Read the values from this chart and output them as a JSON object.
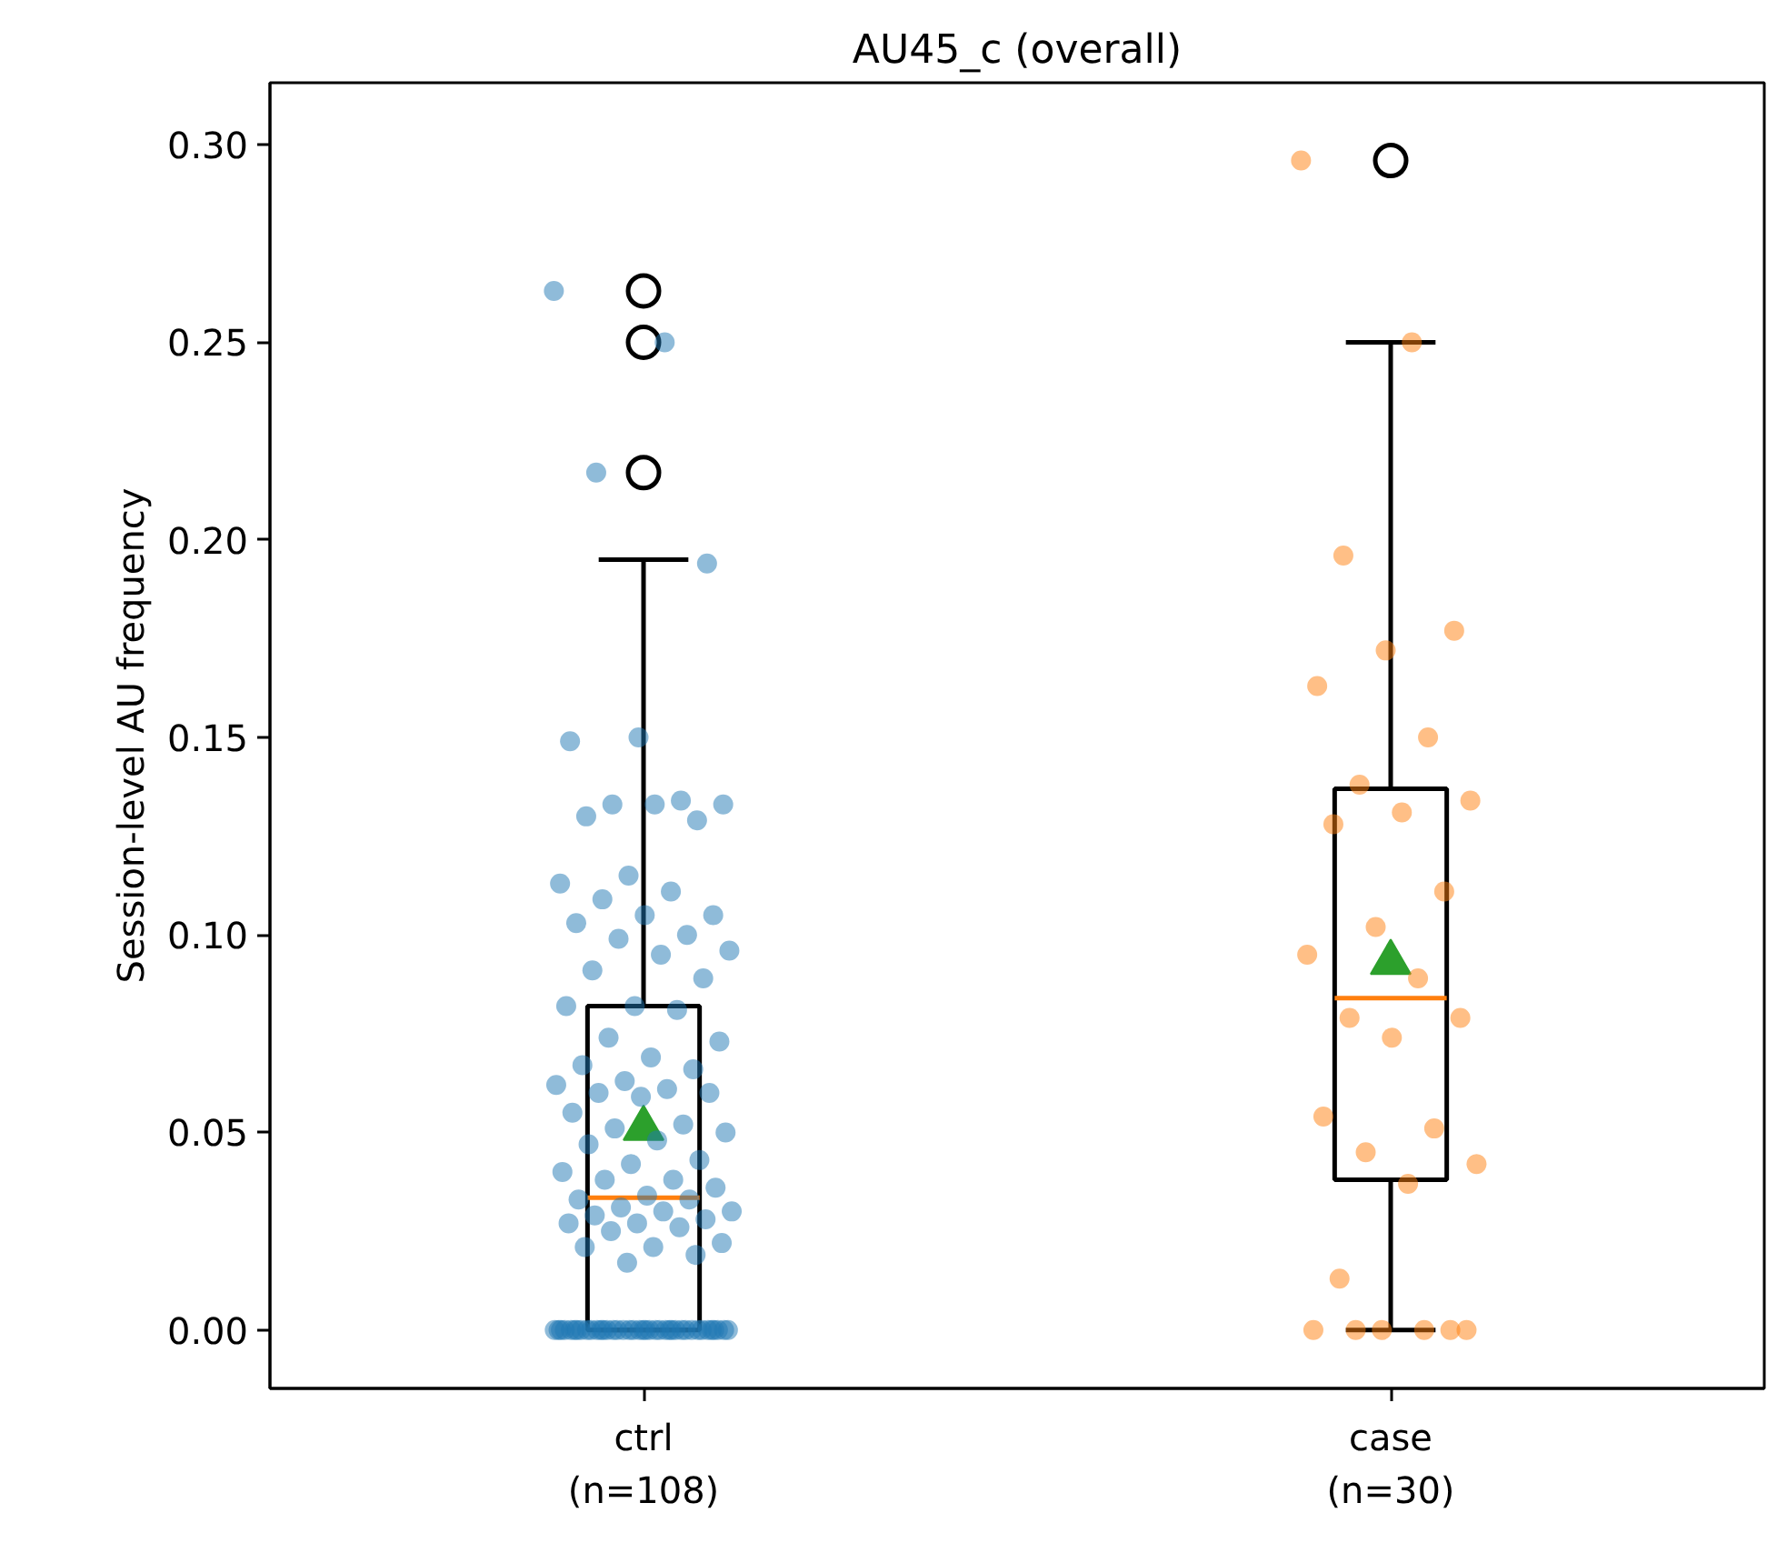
{
  "chart_data": {
    "type": "box",
    "title": "AU45_c (overall)",
    "ylabel": "Session-level AU frequency",
    "categories": [
      "ctrl\n(n=108)",
      "case\n(n=30)"
    ],
    "boxes": [
      {
        "low": 0,
        "q1": 0,
        "median": 0.0335,
        "q3": 0.082,
        "high": 0.195,
        "mean": 0.051,
        "outliers": [
          0.263,
          0.25,
          0.217
        ]
      },
      {
        "low": 0,
        "q1": 0.038,
        "median": 0.084,
        "q3": 0.137,
        "high": 0.25,
        "mean": 0.093,
        "outliers": [
          0.296
        ]
      }
    ],
    "series": [
      {
        "type": "scatter",
        "color": "#1f77b4",
        "x": [
          "ctrl\n(n=108)",
          "ctrl\n(n=108)",
          "ctrl\n(n=108)",
          "ctrl\n(n=108)",
          "ctrl\n(n=108)",
          "ctrl\n(n=108)",
          "ctrl\n(n=108)",
          "ctrl\n(n=108)",
          "ctrl\n(n=108)",
          "ctrl\n(n=108)",
          "ctrl\n(n=108)",
          "ctrl\n(n=108)",
          "ctrl\n(n=108)",
          "ctrl\n(n=108)",
          "ctrl\n(n=108)",
          "ctrl\n(n=108)",
          "ctrl\n(n=108)",
          "ctrl\n(n=108)",
          "ctrl\n(n=108)",
          "ctrl\n(n=108)",
          "ctrl\n(n=108)",
          "ctrl\n(n=108)",
          "ctrl\n(n=108)",
          "ctrl\n(n=108)",
          "ctrl\n(n=108)",
          "ctrl\n(n=108)",
          "ctrl\n(n=108)",
          "ctrl\n(n=108)",
          "ctrl\n(n=108)",
          "ctrl\n(n=108)",
          "ctrl\n(n=108)",
          "ctrl\n(n=108)",
          "ctrl\n(n=108)",
          "ctrl\n(n=108)",
          "ctrl\n(n=108)",
          "ctrl\n(n=108)",
          "ctrl\n(n=108)",
          "ctrl\n(n=108)",
          "ctrl\n(n=108)",
          "ctrl\n(n=108)",
          "ctrl\n(n=108)",
          "ctrl\n(n=108)",
          "ctrl\n(n=108)",
          "ctrl\n(n=108)",
          "ctrl\n(n=108)",
          "ctrl\n(n=108)",
          "ctrl\n(n=108)",
          "ctrl\n(n=108)",
          "ctrl\n(n=108)",
          "ctrl\n(n=108)",
          "ctrl\n(n=108)",
          "ctrl\n(n=108)",
          "ctrl\n(n=108)",
          "ctrl\n(n=108)",
          "ctrl\n(n=108)",
          "ctrl\n(n=108)",
          "ctrl\n(n=108)",
          "ctrl\n(n=108)",
          "ctrl\n(n=108)",
          "ctrl\n(n=108)",
          "ctrl\n(n=108)",
          "ctrl\n(n=108)",
          "ctrl\n(n=108)",
          "ctrl\n(n=108)",
          "ctrl\n(n=108)",
          "ctrl\n(n=108)",
          "ctrl\n(n=108)",
          "ctrl\n(n=108)",
          "ctrl\n(n=108)",
          "ctrl\n(n=108)",
          "ctrl\n(n=108)",
          "ctrl\n(n=108)",
          "ctrl\n(n=108)",
          "ctrl\n(n=108)",
          "ctrl\n(n=108)",
          "ctrl\n(n=108)",
          "ctrl\n(n=108)",
          "ctrl\n(n=108)",
          "ctrl\n(n=108)",
          "ctrl\n(n=108)",
          "ctrl\n(n=108)",
          "ctrl\n(n=108)",
          "ctrl\n(n=108)",
          "ctrl\n(n=108)",
          "ctrl\n(n=108)",
          "ctrl\n(n=108)",
          "ctrl\n(n=108)",
          "ctrl\n(n=108)",
          "ctrl\n(n=108)",
          "ctrl\n(n=108)",
          "ctrl\n(n=108)",
          "ctrl\n(n=108)",
          "ctrl\n(n=108)",
          "ctrl\n(n=108)",
          "ctrl\n(n=108)",
          "ctrl\n(n=108)",
          "ctrl\n(n=108)",
          "ctrl\n(n=108)",
          "ctrl\n(n=108)",
          "ctrl\n(n=108)",
          "ctrl\n(n=108)",
          "ctrl\n(n=108)",
          "ctrl\n(n=108)",
          "ctrl\n(n=108)",
          "ctrl\n(n=108)",
          "ctrl\n(n=108)",
          "ctrl\n(n=108)",
          "ctrl\n(n=108)"
        ],
        "values": [
          0.263,
          0.25,
          0.217,
          0.194,
          0.15,
          0.149,
          0.134,
          0.133,
          0.133,
          0.133,
          0.13,
          0.129,
          0.115,
          0.113,
          0.111,
          0.109,
          0.105,
          0.105,
          0.103,
          0.1,
          0.099,
          0.096,
          0.095,
          0.091,
          0.089,
          0.082,
          0.082,
          0.081,
          0.074,
          0.073,
          0.069,
          0.067,
          0.066,
          0.063,
          0.062,
          0.061,
          0.06,
          0.06,
          0.059,
          0.055,
          0.052,
          0.051,
          0.05,
          0.048,
          0.047,
          0.043,
          0.042,
          0.04,
          0.038,
          0.038,
          0.036,
          0.034,
          0.033,
          0.033,
          0.031,
          0.03,
          0.03,
          0.029,
          0.028,
          0.027,
          0.027,
          0.026,
          0.025,
          0.022,
          0.021,
          0.021,
          0.019,
          0.017,
          0,
          0,
          0,
          0,
          0,
          0,
          0,
          0,
          0,
          0,
          0,
          0,
          0,
          0,
          0,
          0,
          0,
          0,
          0,
          0,
          0,
          0,
          0,
          0,
          0,
          0,
          0,
          0,
          0,
          0,
          0,
          0,
          0,
          0,
          0,
          0,
          0,
          0,
          0,
          0
        ]
      },
      {
        "type": "scatter",
        "color": "#ff7f0e",
        "x": [
          "case\n(n=30)",
          "case\n(n=30)",
          "case\n(n=30)",
          "case\n(n=30)",
          "case\n(n=30)",
          "case\n(n=30)",
          "case\n(n=30)",
          "case\n(n=30)",
          "case\n(n=30)",
          "case\n(n=30)",
          "case\n(n=30)",
          "case\n(n=30)",
          "case\n(n=30)",
          "case\n(n=30)",
          "case\n(n=30)",
          "case\n(n=30)",
          "case\n(n=30)",
          "case\n(n=30)",
          "case\n(n=30)",
          "case\n(n=30)",
          "case\n(n=30)",
          "case\n(n=30)",
          "case\n(n=30)",
          "case\n(n=30)",
          "case\n(n=30)",
          "case\n(n=30)",
          "case\n(n=30)",
          "case\n(n=30)",
          "case\n(n=30)",
          "case\n(n=30)"
        ],
        "values": [
          0.296,
          0.25,
          0.196,
          0.177,
          0.172,
          0.163,
          0.15,
          0.138,
          0.134,
          0.131,
          0.128,
          0.111,
          0.102,
          0.095,
          0.089,
          0.079,
          0.079,
          0.074,
          0.054,
          0.051,
          0.045,
          0.042,
          0.037,
          0.013,
          0,
          0,
          0,
          0,
          0,
          0
        ]
      }
    ],
    "ylim": [
      -0.0148,
      0.3157
    ],
    "yticks": [
      {
        "value": 0,
        "label": "0.00"
      },
      {
        "value": 0.05,
        "label": "0.05"
      },
      {
        "value": 0.1,
        "label": "0.10"
      },
      {
        "value": 0.15,
        "label": "0.15"
      },
      {
        "value": 0.2,
        "label": "0.20"
      },
      {
        "value": 0.25,
        "label": "0.25"
      },
      {
        "value": 0.3,
        "label": "0.30"
      }
    ],
    "grid": false
  }
}
